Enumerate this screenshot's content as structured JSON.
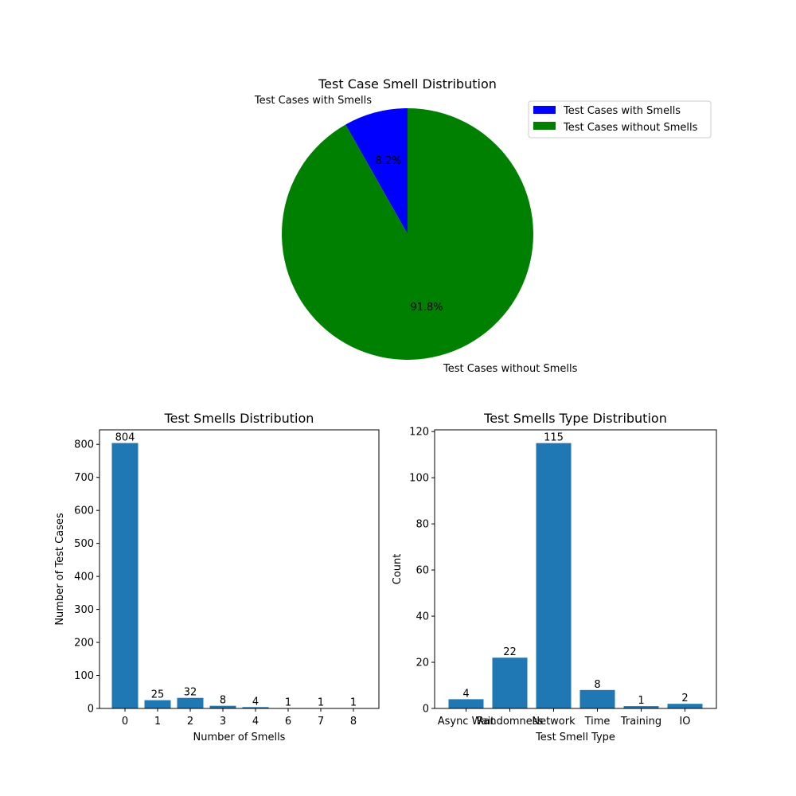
{
  "colors": {
    "with_smells": "#0000ff",
    "without_smells": "#008000",
    "bar": "#1f77b4",
    "axis": "#000000",
    "background": "#ffffff"
  },
  "chart_data": [
    {
      "type": "pie",
      "title": "Test Case Smell Distribution",
      "labels": [
        "Test Cases with Smells",
        "Test Cases without Smells"
      ],
      "values": [
        8.2,
        91.8
      ],
      "value_labels": [
        "8.2%",
        "91.8%"
      ],
      "start_angle_deg": 90,
      "legend": {
        "position": "top-right",
        "entries": [
          "Test Cases with Smells",
          "Test Cases without Smells"
        ]
      }
    },
    {
      "type": "bar",
      "title": "Test Smells Distribution",
      "xlabel": "Number of Smells",
      "ylabel": "Number of Test Cases",
      "categories": [
        "0",
        "1",
        "2",
        "3",
        "4",
        "6",
        "7",
        "8"
      ],
      "values": [
        804,
        25,
        32,
        8,
        4,
        1,
        1,
        1
      ],
      "value_labels": [
        "804",
        "25",
        "32",
        "8",
        "4",
        "1",
        "1",
        "1"
      ],
      "ylim": [
        0,
        844
      ],
      "yticks": [
        0,
        100,
        200,
        300,
        400,
        500,
        600,
        700,
        800
      ],
      "ytick_labels": [
        "0",
        "100",
        "200",
        "300",
        "400",
        "500",
        "600",
        "700",
        "800"
      ]
    },
    {
      "type": "bar",
      "title": "Test Smells Type Distribution",
      "xlabel": "Test Smell Type",
      "ylabel": "Count",
      "categories": [
        "Async Wait",
        "Randomness",
        "Network",
        "Time",
        "Training",
        "IO"
      ],
      "values": [
        4,
        22,
        115,
        8,
        1,
        2
      ],
      "value_labels": [
        "4",
        "22",
        "115",
        "8",
        "1",
        "2"
      ],
      "ylim": [
        0,
        120.75
      ],
      "yticks": [
        0,
        20,
        40,
        60,
        80,
        100,
        120
      ],
      "ytick_labels": [
        "0",
        "20",
        "40",
        "60",
        "80",
        "100",
        "120"
      ]
    }
  ]
}
